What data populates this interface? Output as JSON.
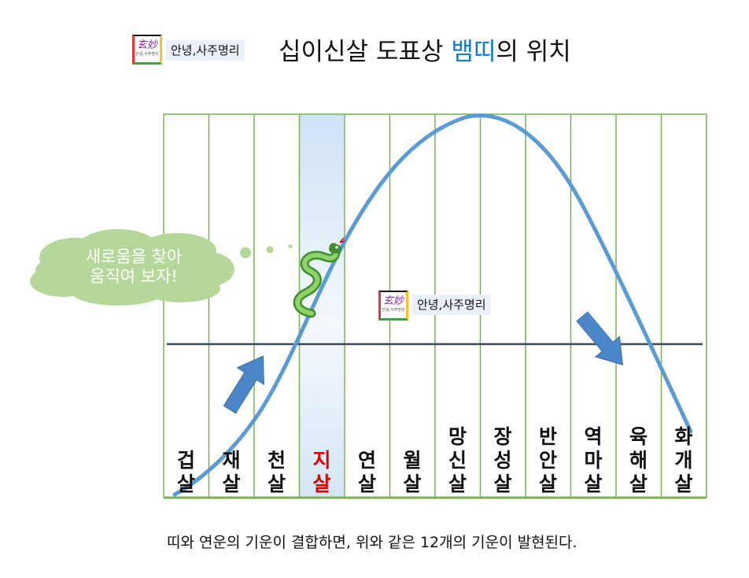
{
  "header": {
    "logo_glyph": "玄妙",
    "logo_caption": "안녕,사주명리",
    "brand_label": "안녕,사주명리",
    "title_part1": "십이신살 도표상 ",
    "title_highlight": "뱀띠",
    "title_part2": "의 위치"
  },
  "columns": [
    {
      "top": "",
      "bottom": "겁",
      "bottom2": "살"
    },
    {
      "top": "",
      "bottom": "재",
      "bottom2": "살"
    },
    {
      "top": "",
      "bottom": "천",
      "bottom2": "살"
    },
    {
      "top": "",
      "bottom": "지",
      "bottom2": "살"
    },
    {
      "top": "",
      "bottom": "연",
      "bottom2": "살"
    },
    {
      "top": "",
      "bottom": "월",
      "bottom2": "살"
    },
    {
      "top": "망",
      "bottom": "신",
      "bottom2": "살"
    },
    {
      "top": "장",
      "bottom": "성",
      "bottom2": "살"
    },
    {
      "top": "반",
      "bottom": "안",
      "bottom2": "살"
    },
    {
      "top": "역",
      "bottom": "마",
      "bottom2": "살"
    },
    {
      "top": "육",
      "bottom": "해",
      "bottom2": "살"
    },
    {
      "top": "화",
      "bottom": "개",
      "bottom2": "살"
    }
  ],
  "highlight_column": 3,
  "cloud": {
    "line1": "새로움을 찾아",
    "line2": "움직여 보자!"
  },
  "watermark": {
    "logo_glyph": "玄妙",
    "logo_caption": "안녕,사주명리",
    "label": "안녕,사주명리"
  },
  "footer": "띠와 연운의 기운이 결합하면, 위와 같은 12개의 기운이 발현된다.",
  "colors": {
    "grid": "#77b255",
    "curve": "#5b9bd5",
    "midline": "#3a4a5a",
    "highlight": "#cfe2f7",
    "cloud": "#b5d79a",
    "arrow": "#4a86c8",
    "snake": "#6ab04c",
    "accent_text": "#1a7bbf",
    "red_text": "#e00000"
  },
  "icons": [
    "snake-icon",
    "arrow-up-right-icon",
    "arrow-down-right-icon",
    "thought-cloud-icon"
  ]
}
